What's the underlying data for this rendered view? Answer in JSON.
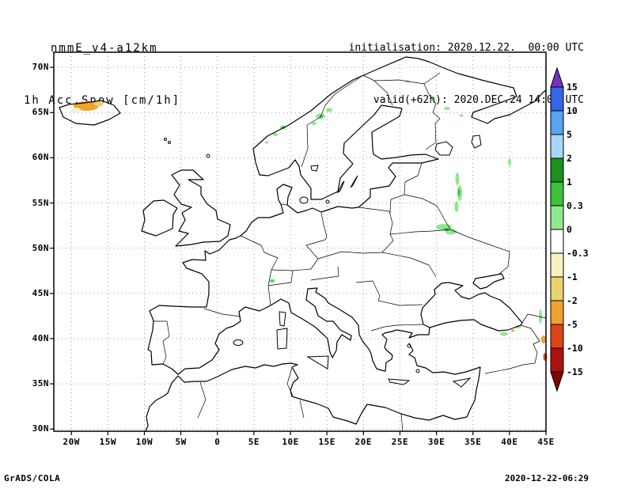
{
  "header": {
    "model": "nmmE_v4-a12km",
    "variable": "1h Acc.Snow [cm/1h]",
    "init_line": "initialisation: 2020.12.22.  00:00 UTC",
    "valid_line": "valid(+62h): 2020.DEC.24 14:00 UTC"
  },
  "footer": {
    "left": "GrADS/COLA",
    "right": "2020-12-22-06:29"
  },
  "map": {
    "lat_ticks": [
      "70N",
      "65N",
      "60N",
      "55N",
      "50N",
      "45N",
      "40N",
      "35N",
      "30N"
    ],
    "lon_ticks": [
      "20W",
      "15W",
      "10W",
      "5W",
      "0",
      "5E",
      "10E",
      "15E",
      "20E",
      "25E",
      "30E",
      "35E",
      "40E",
      "45E"
    ]
  },
  "palette": {
    "purple": "#7b2fbe",
    "blue": "#3366e6",
    "light_blue": "#5aa3ee",
    "pale_blue": "#a9d6f7",
    "dark_green": "#1f8f1f",
    "green": "#3cc23c",
    "light_green": "#8ee98e",
    "white": "#ffffff",
    "pale_yellow": "#f7f3c0",
    "yellow": "#ead271",
    "orange": "#efa22d",
    "red": "#dd4516",
    "dark_red": "#ab1310",
    "maroon": "#7a0606"
  },
  "colorbar": {
    "levels": [
      "15",
      "10",
      "5",
      "2",
      "1",
      "0.3",
      "0",
      "-0.3",
      "-1",
      "-2",
      "-5",
      "-10",
      "-15"
    ],
    "colors_top_to_bottom": [
      "#7b2fbe",
      "#3366e6",
      "#5aa3ee",
      "#a9d6f7",
      "#1f8f1f",
      "#3cc23c",
      "#8ee98e",
      "#ffffff",
      "#f7f3c0",
      "#ead271",
      "#efa22d",
      "#dd4516",
      "#ab1310",
      "#7a0606"
    ]
  },
  "chart_data": {
    "type": "map",
    "title": "1h Acc.Snow [cm/1h]",
    "model": "nmmE_v4-a12km",
    "initialisation": "2020.12.22 00:00 UTC",
    "valid": "2020.DEC.24 14:00 UTC",
    "forecast_hour": "+62h",
    "units": "cm/1h",
    "projection": "lat-lon",
    "lon_range_deg": [
      -22.4,
      45
    ],
    "lat_range_deg": [
      29.6,
      71.7
    ],
    "contour_levels": [
      -15,
      -10,
      -5,
      -2,
      -1,
      -0.3,
      0,
      0.3,
      1,
      2,
      5,
      10,
      15
    ],
    "shaded_features": [
      {
        "region": "Iceland",
        "color_band": "orange/yellow band",
        "approx_lon_lat": [
          -18.5,
          65.3
        ]
      },
      {
        "region": "Norway coast near Trondheim",
        "color_band": "light green (0 to 0.3)",
        "approx_lon_lat": [
          8,
          63
        ]
      },
      {
        "region": "Central Sweden",
        "color_band": "light green (0 to 0.3)",
        "approx_lon_lat": [
          14,
          64.5
        ]
      },
      {
        "region": "Northern Finland / Kola",
        "color_band": "light green (0 to 0.3)",
        "approx_lon_lat": [
          31,
          65.5
        ]
      },
      {
        "region": "Western Russia meridional streak",
        "color_band": "light green (0 to 0.3)",
        "approx_lon_lat": [
          33,
          56
        ]
      },
      {
        "region": "Russia near 52N 31E",
        "color_band": "light green (0 to 0.3)",
        "approx_lon_lat": [
          31,
          52
        ]
      },
      {
        "region": "Alps / Switzerland",
        "color_band": "light green (0 to 0.3)",
        "approx_lon_lat": [
          8,
          46.3
        ]
      },
      {
        "region": "Eastern Turkey / Caucasus",
        "color_band": "green with orange and red specks",
        "approx_lon_lat": [
          40,
          40.5
        ]
      }
    ]
  }
}
